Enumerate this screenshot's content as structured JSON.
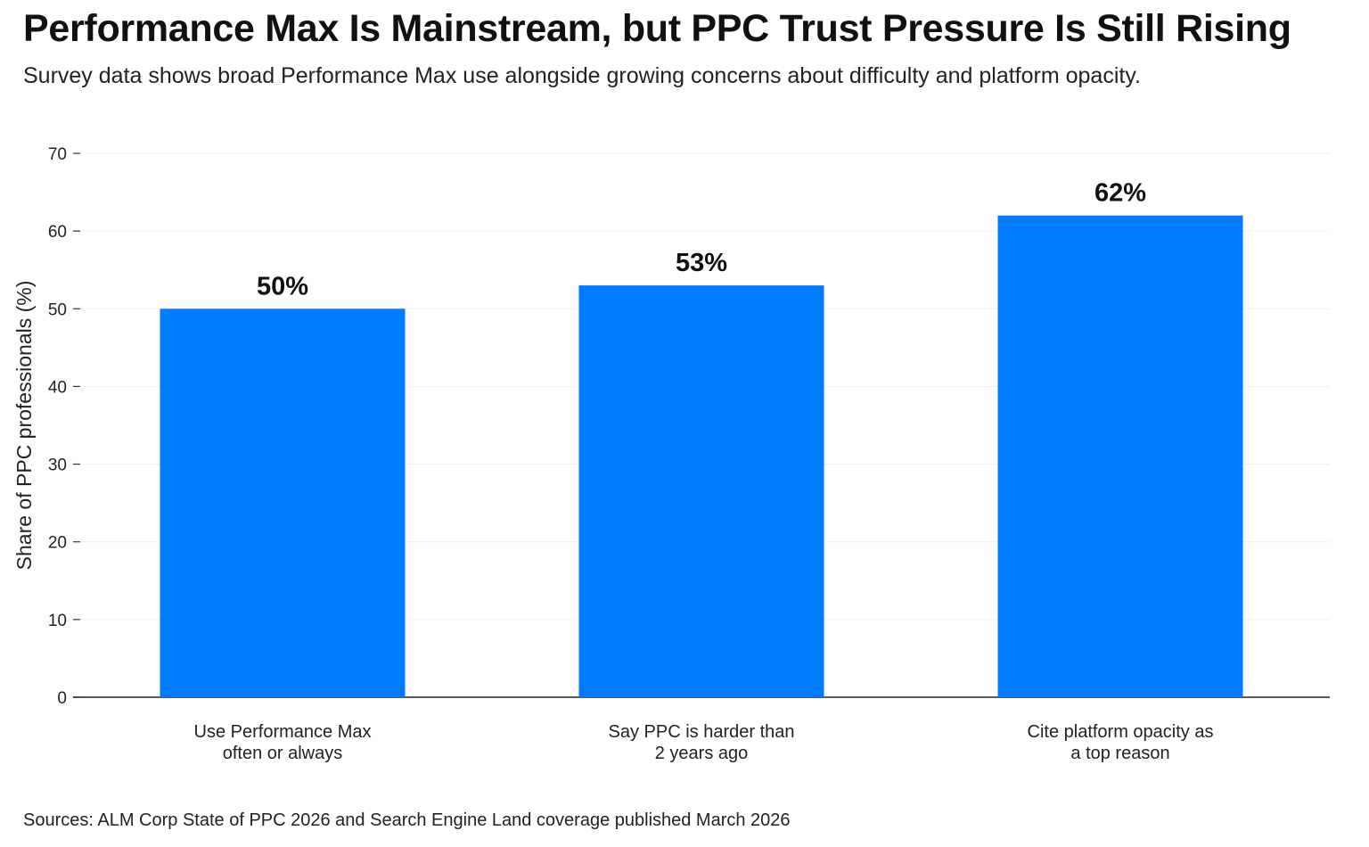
{
  "chart_data": {
    "type": "bar",
    "title": "Performance Max Is Mainstream, but PPC Trust Pressure Is Still Rising",
    "subtitle": "Survey data shows broad Performance Max use alongside growing concerns about difficulty and platform opacity.",
    "categories": [
      [
        "Use Performance Max",
        "often or always"
      ],
      [
        "Say PPC is harder than",
        "2 years ago"
      ],
      [
        "Cite platform opacity as",
        "a top reason"
      ]
    ],
    "values": [
      50,
      53,
      62
    ],
    "data_labels": [
      "50%",
      "53%",
      "62%"
    ],
    "xlabel": "",
    "ylabel": "Share of PPC professionals (%)",
    "ylim": [
      0,
      70
    ],
    "yticks": [
      0,
      10,
      20,
      30,
      40,
      50,
      60,
      70
    ],
    "grid": true,
    "bar_color": "#007BFF",
    "source": "Sources: ALM Corp State of PPC 2026 and Search Engine Land coverage published March 2026"
  }
}
